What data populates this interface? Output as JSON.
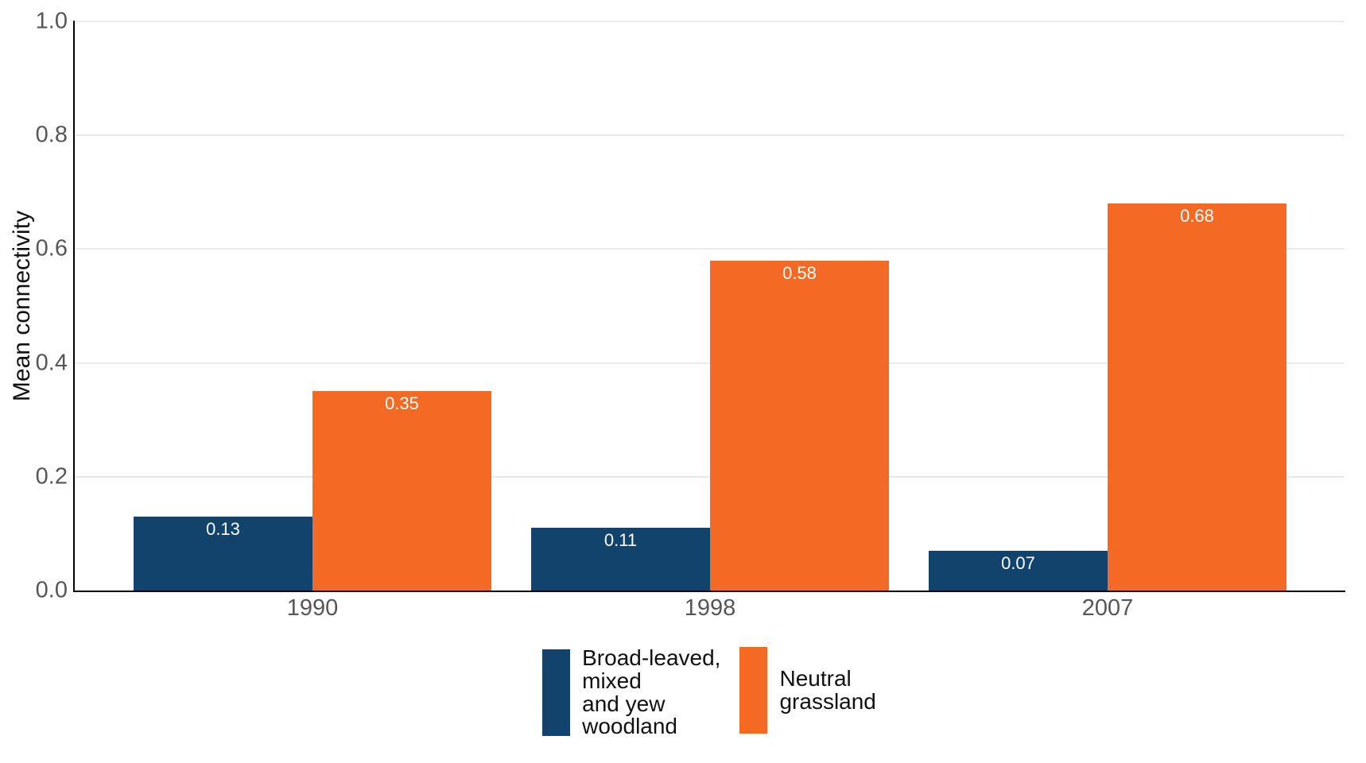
{
  "chart_data": {
    "type": "bar",
    "title": "",
    "xlabel": "",
    "ylabel": "Mean connectivity",
    "categories": [
      "1990",
      "1998",
      "2007"
    ],
    "series": [
      {
        "name": "Broad-leaved,\nmixed\nand yew\nwoodland",
        "color": "#12436D",
        "values": [
          0.13,
          0.11,
          0.07
        ],
        "labels": [
          "0.13",
          "0.11",
          "0.07"
        ]
      },
      {
        "name": "Neutral\ngrassland",
        "color": "#F46A25",
        "values": [
          0.35,
          0.58,
          0.68
        ],
        "labels": [
          "0.35",
          "0.58",
          "0.68"
        ]
      }
    ],
    "ylim": [
      0,
      1.0
    ],
    "yticks": [
      "0.0",
      "0.2",
      "0.4",
      "0.6",
      "0.8",
      "1.0"
    ],
    "grid": "horizontal-major-only",
    "legend_position": "bottom-center",
    "value_labels": "inside-top-centered-white"
  },
  "style": {
    "grid_color": "#EBEBEB",
    "axis_color": "#000000",
    "tick_label_color": "#565656",
    "text_color": "#111111",
    "value_label_color": "#FFFFFF",
    "background": "#FFFFFF"
  }
}
